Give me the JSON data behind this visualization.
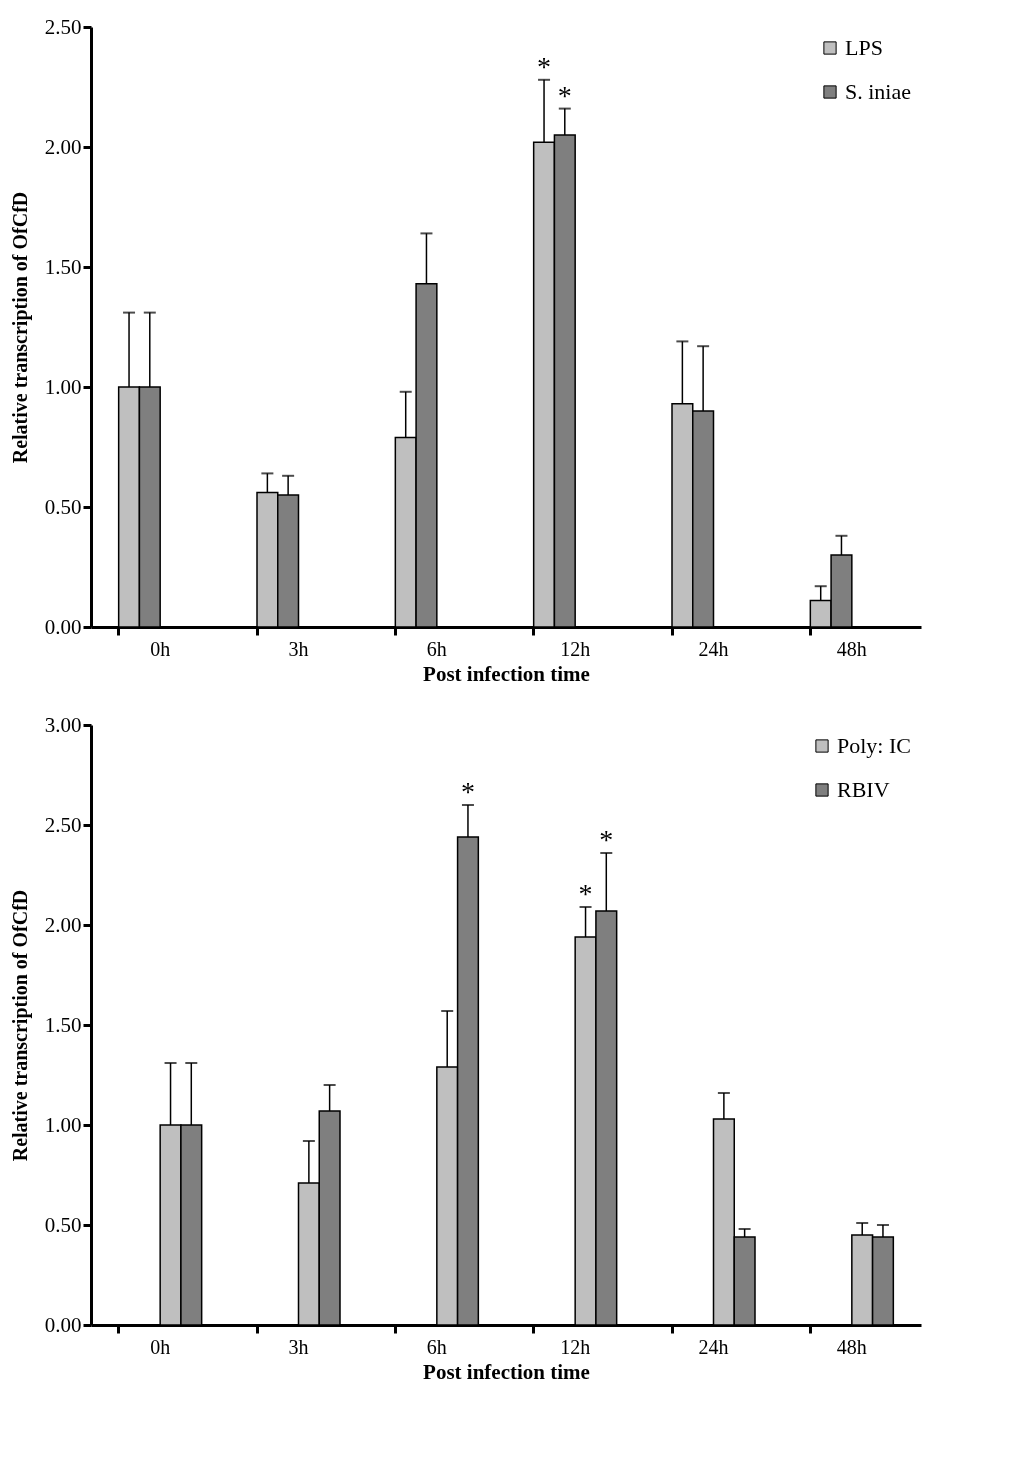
{
  "chart_data": [
    {
      "type": "bar",
      "ylabel": "Relative transcription of OfCfD",
      "xlabel": "Post infection time",
      "categories": [
        "0h",
        "3h",
        "6h",
        "12h",
        "24h",
        "48h"
      ],
      "series": [
        {
          "name": "LPS",
          "color": "#bfbfbf",
          "values": [
            1.0,
            0.56,
            0.79,
            2.02,
            0.93,
            0.11
          ],
          "errors": [
            0.31,
            0.08,
            0.19,
            0.26,
            0.26,
            0.06
          ],
          "value_labels": [
            null,
            null,
            null,
            "*",
            null,
            null
          ]
        },
        {
          "name": "S. iniae",
          "color": "#7f7f7f",
          "values": [
            1.0,
            0.55,
            1.43,
            2.05,
            0.9,
            0.3
          ],
          "errors": [
            0.31,
            0.08,
            0.21,
            0.11,
            0.27,
            0.08
          ],
          "value_labels": [
            null,
            null,
            null,
            "*",
            null,
            null
          ]
        }
      ],
      "ylim": [
        0,
        2.5
      ],
      "yticks": [
        {
          "value": 0,
          "label": "0.00"
        },
        {
          "value": 0.5,
          "label": "0.50"
        },
        {
          "value": 1,
          "label": "1.00"
        },
        {
          "value": 1.5,
          "label": "1.50"
        },
        {
          "value": 2,
          "label": "2.00"
        },
        {
          "value": 2.5,
          "label": "2.50"
        }
      ],
      "grid": false,
      "legend": "top right"
    },
    {
      "type": "bar",
      "ylabel": "Relative transcription of OfCfD",
      "xlabel": "Post infection time",
      "categories": [
        "0h",
        "3h",
        "6h",
        "12h",
        "24h",
        "48h"
      ],
      "series": [
        {
          "name": "Poly: IC",
          "color": "#bfbfbf",
          "values": [
            1.0,
            0.71,
            1.29,
            1.94,
            1.03,
            0.45
          ],
          "errors": [
            0.31,
            0.21,
            0.28,
            0.15,
            0.13,
            0.06
          ],
          "value_labels": [
            null,
            null,
            null,
            "*",
            null,
            null
          ]
        },
        {
          "name": "RBIV",
          "color": "#7f7f7f",
          "values": [
            1.0,
            1.07,
            2.44,
            2.07,
            0.44,
            0.44
          ],
          "errors": [
            0.31,
            0.13,
            0.16,
            0.29,
            0.04,
            0.06
          ],
          "value_labels": [
            null,
            null,
            "*",
            "*",
            null,
            null
          ]
        }
      ],
      "ylim": [
        0,
        3
      ],
      "yticks": [
        {
          "value": 0,
          "label": "0.00"
        },
        {
          "value": 0.5,
          "label": "0.50"
        },
        {
          "value": 1,
          "label": "1.00"
        },
        {
          "value": 1.5,
          "label": "1.50"
        },
        {
          "value": 2,
          "label": "2.00"
        },
        {
          "value": 2.5,
          "label": "2.50"
        },
        {
          "value": 3,
          "label": "3.00"
        }
      ],
      "grid": false,
      "legend": "top right"
    }
  ]
}
